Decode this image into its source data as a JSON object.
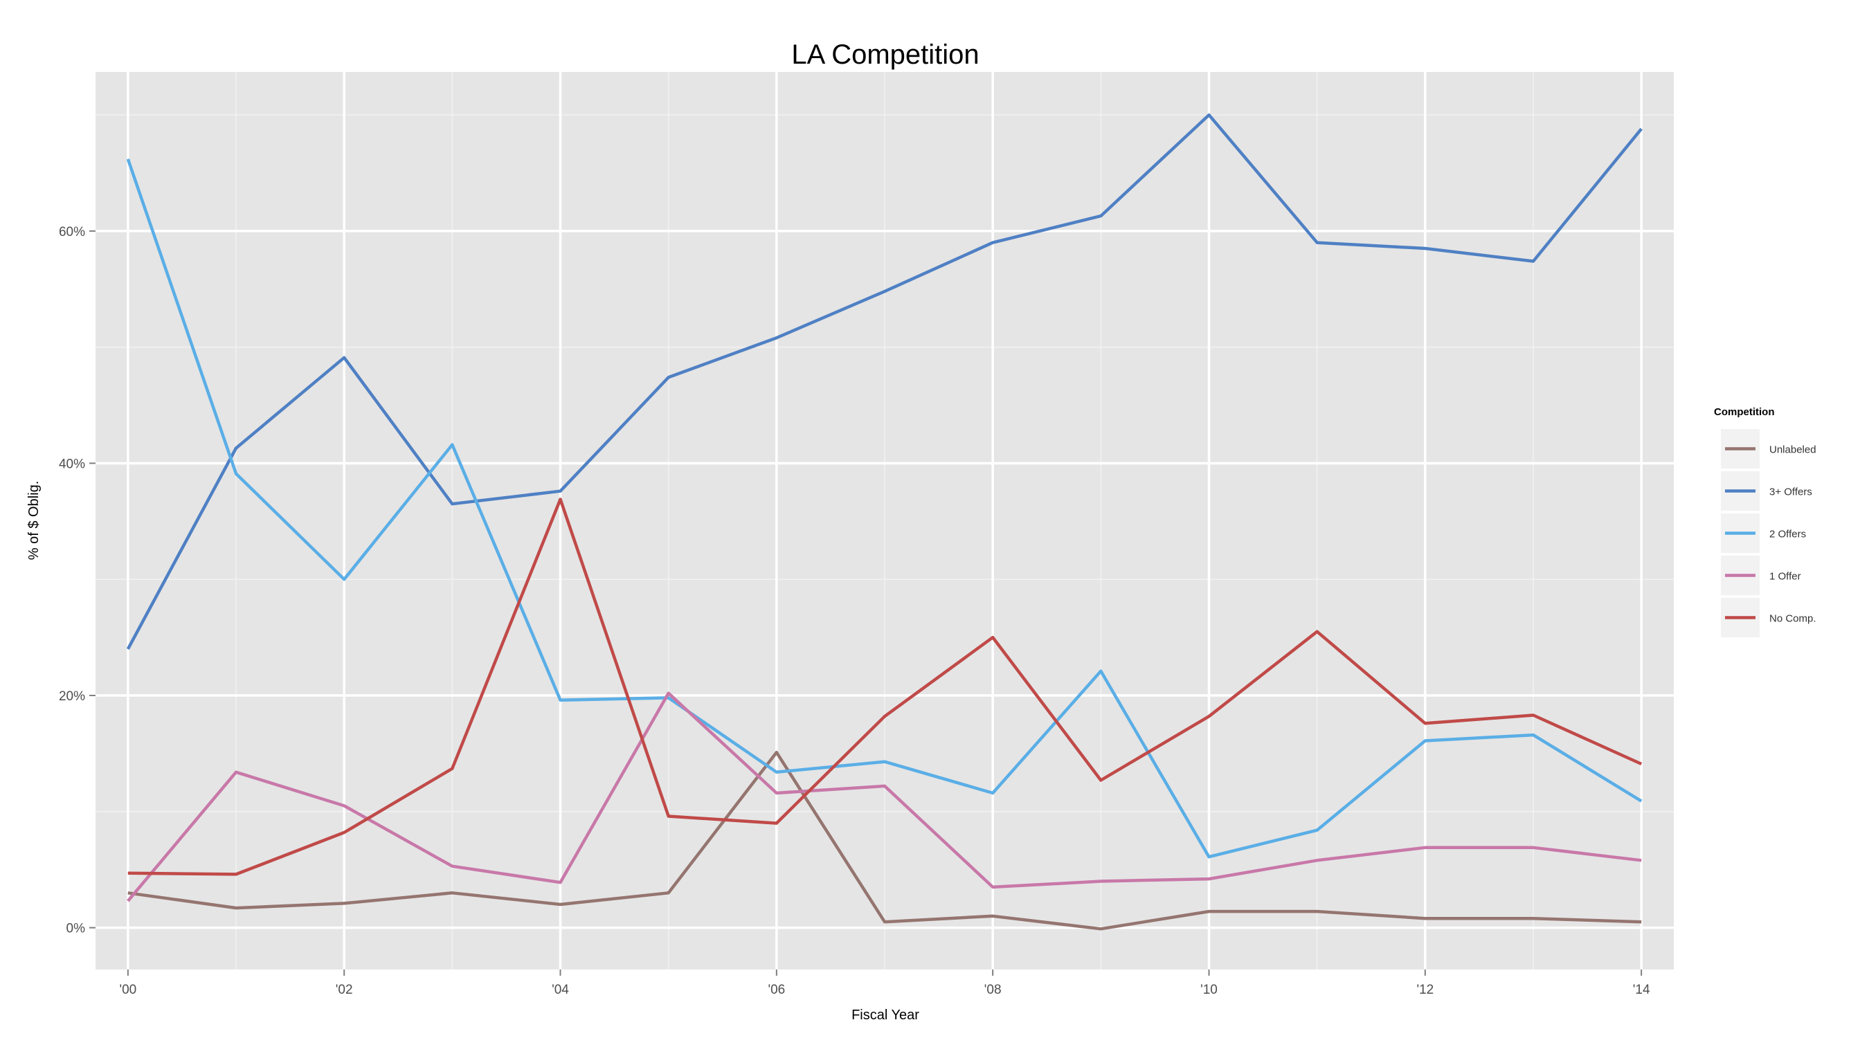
{
  "chart_data": {
    "type": "line",
    "title": "LA Competition",
    "xlabel": "Fiscal Year",
    "ylabel": "% of $ Oblig.",
    "x": [
      2000,
      2001,
      2002,
      2003,
      2004,
      2005,
      2006,
      2007,
      2008,
      2009,
      2010,
      2011,
      2012,
      2013,
      2014
    ],
    "xlim": [
      1999.7,
      2014.3
    ],
    "ylim": [
      -3.6,
      73.7
    ],
    "x_ticks": [
      {
        "value": 2000,
        "label": "'00"
      },
      {
        "value": 2002,
        "label": "'02"
      },
      {
        "value": 2004,
        "label": "'04"
      },
      {
        "value": 2006,
        "label": "'06"
      },
      {
        "value": 2008,
        "label": "'08"
      },
      {
        "value": 2010,
        "label": "'10"
      },
      {
        "value": 2012,
        "label": "'12"
      },
      {
        "value": 2014,
        "label": "'14"
      }
    ],
    "y_ticks": [
      {
        "value": 0,
        "label": "0%"
      },
      {
        "value": 20,
        "label": "20%"
      },
      {
        "value": 40,
        "label": "40%"
      },
      {
        "value": 60,
        "label": "60%"
      }
    ],
    "y_minor_ticks": [
      10,
      30,
      50,
      70
    ],
    "x_minor_ticks": [
      2001,
      2003,
      2005,
      2007,
      2009,
      2011,
      2013
    ],
    "grid": true,
    "legend": {
      "title": "Competition",
      "position": "right"
    },
    "series": [
      {
        "name": "Unlabeled",
        "color": "#957570",
        "values": [
          3.0,
          1.7,
          2.1,
          3.0,
          2.0,
          3.0,
          15.1,
          0.5,
          1.0,
          -0.1,
          1.4,
          1.4,
          0.8,
          0.8,
          0.5
        ]
      },
      {
        "name": "3+ Offers",
        "color": "#4f80c4",
        "values": [
          24.0,
          41.3,
          49.1,
          36.5,
          37.6,
          47.4,
          50.8,
          54.8,
          59.0,
          61.3,
          70.0,
          59.0,
          58.5,
          57.4,
          68.8
        ]
      },
      {
        "name": "2 Offers",
        "color": "#5aaee6",
        "values": [
          66.2,
          39.1,
          30.0,
          41.6,
          19.6,
          19.8,
          13.4,
          14.3,
          11.6,
          22.1,
          6.1,
          8.4,
          16.1,
          16.6,
          10.9
        ]
      },
      {
        "name": "1 Offer",
        "color": "#c878a8",
        "values": [
          2.3,
          13.4,
          10.5,
          5.3,
          3.9,
          20.2,
          11.6,
          12.2,
          3.5,
          4.0,
          4.2,
          5.8,
          6.9,
          6.9,
          5.8
        ]
      },
      {
        "name": "No Comp.",
        "color": "#c04a48",
        "values": [
          4.7,
          4.6,
          8.2,
          13.7,
          36.9,
          9.6,
          9.0,
          18.2,
          25.0,
          12.7,
          18.2,
          25.5,
          17.6,
          18.3,
          14.1
        ]
      }
    ]
  }
}
